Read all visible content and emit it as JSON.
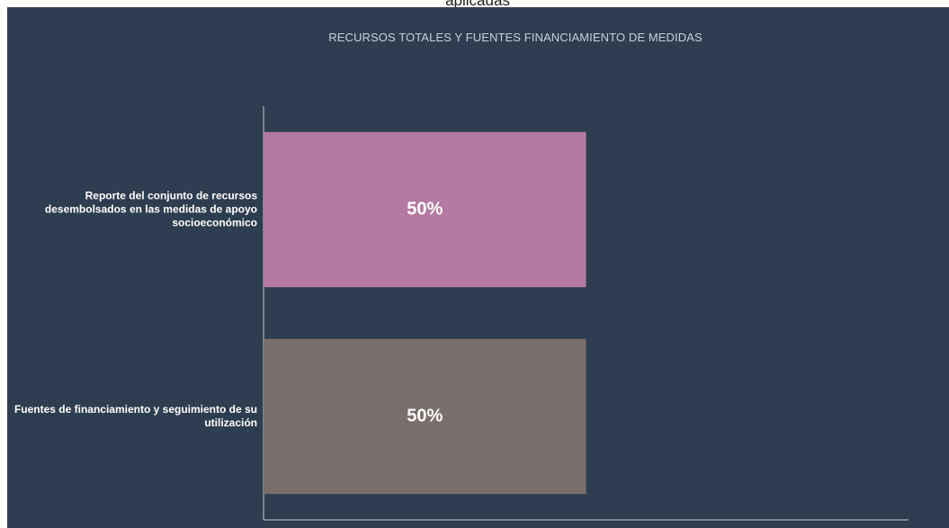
{
  "caption": "aplicadas",
  "chart_data": {
    "type": "bar",
    "orientation": "horizontal",
    "title": "RECURSOS TOTALES Y FUENTES FINANCIAMIENTO DE MEDIDAS",
    "categories": [
      "Reporte del conjunto de recursos desembolsados en las medidas de apoyo socioeconómico",
      "Fuentes de financiamiento y seguimiento de su utilización"
    ],
    "values": [
      50,
      50
    ],
    "value_labels": [
      "50%",
      "50%"
    ],
    "colors": [
      "#b47aa2",
      "#7a6e6c"
    ],
    "xlim": [
      0,
      100
    ]
  }
}
